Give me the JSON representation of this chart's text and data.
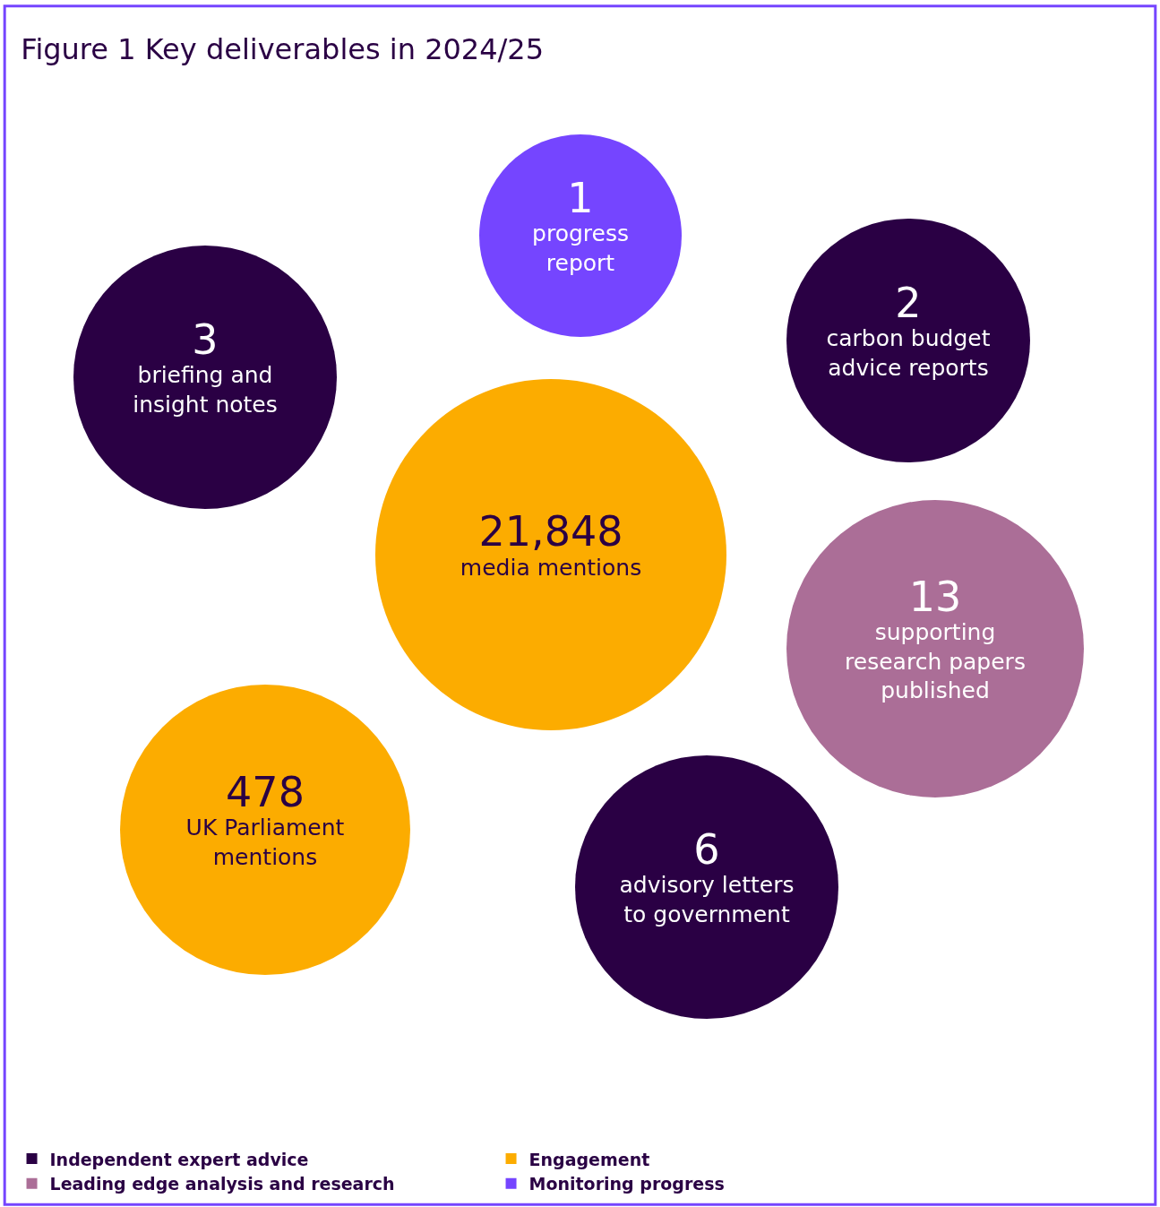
{
  "chart_data": {
    "type": "other",
    "title": "Figure 1 Key deliverables in 2024/25",
    "legend": "bottom",
    "data_labels": true,
    "categories": [
      "progress report",
      "carbon budget advice reports",
      "briefing and insight notes",
      "media mentions",
      "supporting research papers published",
      "UK Parliament mentions",
      "advisory letters to government"
    ],
    "series": [
      {
        "name": "Independent expert advice",
        "color": "#2a0044",
        "values": [
          null,
          2,
          3,
          null,
          null,
          null,
          6
        ],
        "value_labels": [
          null,
          "2",
          "3",
          null,
          null,
          null,
          "6"
        ]
      },
      {
        "name": "Engagement",
        "color": "#fcac00",
        "values": [
          null,
          null,
          null,
          21848,
          null,
          478,
          null
        ],
        "value_labels": [
          null,
          null,
          null,
          "21,848",
          null,
          "478",
          null
        ]
      },
      {
        "name": "Leading edge analysis and research",
        "color": "#ab6e97",
        "values": [
          null,
          null,
          null,
          null,
          13,
          null,
          null
        ],
        "value_labels": [
          null,
          null,
          null,
          null,
          "13",
          null,
          null
        ]
      },
      {
        "name": "Monitoring progress",
        "color": "#7545ff",
        "values": [
          1,
          null,
          null,
          null,
          null,
          null,
          null
        ],
        "value_labels": [
          "1",
          null,
          null,
          null,
          null,
          null,
          null
        ]
      }
    ]
  }
}
